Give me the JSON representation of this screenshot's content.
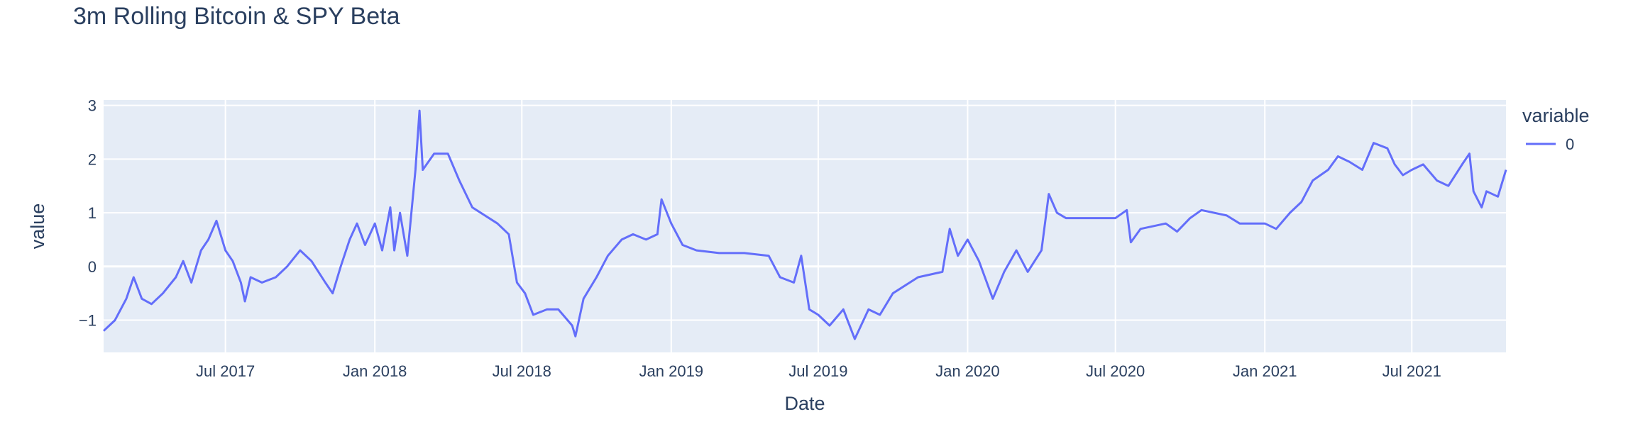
{
  "chart_data": {
    "type": "line",
    "title": "3m Rolling Bitcoin & SPY Beta",
    "xlabel": "Date",
    "ylabel": "value",
    "x_range": [
      "2017-02-01",
      "2021-10-25"
    ],
    "ylim": [
      -1.6,
      3.1
    ],
    "x_ticks": [
      {
        "date": "2017-07-01",
        "label": "Jul 2017"
      },
      {
        "date": "2018-01-01",
        "label": "Jan 2018"
      },
      {
        "date": "2018-07-01",
        "label": "Jul 2018"
      },
      {
        "date": "2019-01-01",
        "label": "Jan 2019"
      },
      {
        "date": "2019-07-01",
        "label": "Jul 2019"
      },
      {
        "date": "2020-01-01",
        "label": "Jan 2020"
      },
      {
        "date": "2020-07-01",
        "label": "Jul 2020"
      },
      {
        "date": "2021-01-01",
        "label": "Jan 2021"
      },
      {
        "date": "2021-07-01",
        "label": "Jul 2021"
      }
    ],
    "y_ticks": [
      -1,
      0,
      1,
      2,
      3
    ],
    "grid": true,
    "legend": {
      "title": "variable",
      "placement": "top-right"
    },
    "series": [
      {
        "name": "0",
        "color": "#636efa",
        "points": [
          [
            "2017-02-01",
            -1.2
          ],
          [
            "2017-02-15",
            -1.0
          ],
          [
            "2017-03-01",
            -0.6
          ],
          [
            "2017-03-10",
            -0.2
          ],
          [
            "2017-03-20",
            -0.6
          ],
          [
            "2017-04-01",
            -0.7
          ],
          [
            "2017-04-15",
            -0.5
          ],
          [
            "2017-05-01",
            -0.2
          ],
          [
            "2017-05-10",
            0.1
          ],
          [
            "2017-05-20",
            -0.3
          ],
          [
            "2017-06-01",
            0.3
          ],
          [
            "2017-06-10",
            0.5
          ],
          [
            "2017-06-20",
            0.85
          ],
          [
            "2017-07-01",
            0.3
          ],
          [
            "2017-07-10",
            0.1
          ],
          [
            "2017-07-20",
            -0.3
          ],
          [
            "2017-07-25",
            -0.65
          ],
          [
            "2017-08-01",
            -0.2
          ],
          [
            "2017-08-15",
            -0.3
          ],
          [
            "2017-09-01",
            -0.2
          ],
          [
            "2017-09-15",
            0.0
          ],
          [
            "2017-10-01",
            0.3
          ],
          [
            "2017-10-15",
            0.1
          ],
          [
            "2017-11-01",
            -0.3
          ],
          [
            "2017-11-10",
            -0.5
          ],
          [
            "2017-11-20",
            0.0
          ],
          [
            "2017-12-01",
            0.5
          ],
          [
            "2017-12-10",
            0.8
          ],
          [
            "2017-12-20",
            0.4
          ],
          [
            "2018-01-01",
            0.8
          ],
          [
            "2018-01-10",
            0.3
          ],
          [
            "2018-01-20",
            1.1
          ],
          [
            "2018-01-25",
            0.3
          ],
          [
            "2018-02-01",
            1.0
          ],
          [
            "2018-02-10",
            0.2
          ],
          [
            "2018-02-20",
            1.8
          ],
          [
            "2018-02-25",
            2.9
          ],
          [
            "2018-03-01",
            1.8
          ],
          [
            "2018-03-15",
            2.1
          ],
          [
            "2018-04-01",
            2.1
          ],
          [
            "2018-04-15",
            1.6
          ],
          [
            "2018-05-01",
            1.1
          ],
          [
            "2018-06-01",
            0.8
          ],
          [
            "2018-06-15",
            0.6
          ],
          [
            "2018-06-25",
            -0.3
          ],
          [
            "2018-07-05",
            -0.5
          ],
          [
            "2018-07-15",
            -0.9
          ],
          [
            "2018-08-01",
            -0.8
          ],
          [
            "2018-08-15",
            -0.8
          ],
          [
            "2018-09-01",
            -1.1
          ],
          [
            "2018-09-05",
            -1.3
          ],
          [
            "2018-09-15",
            -0.6
          ],
          [
            "2018-10-01",
            -0.2
          ],
          [
            "2018-10-15",
            0.2
          ],
          [
            "2018-11-01",
            0.5
          ],
          [
            "2018-11-15",
            0.6
          ],
          [
            "2018-12-01",
            0.5
          ],
          [
            "2018-12-15",
            0.6
          ],
          [
            "2018-12-20",
            1.25
          ],
          [
            "2019-01-01",
            0.8
          ],
          [
            "2019-01-15",
            0.4
          ],
          [
            "2019-02-01",
            0.3
          ],
          [
            "2019-03-01",
            0.25
          ],
          [
            "2019-04-01",
            0.25
          ],
          [
            "2019-05-01",
            0.2
          ],
          [
            "2019-05-15",
            -0.2
          ],
          [
            "2019-06-01",
            -0.3
          ],
          [
            "2019-06-10",
            0.2
          ],
          [
            "2019-06-20",
            -0.8
          ],
          [
            "2019-07-01",
            -0.9
          ],
          [
            "2019-07-15",
            -1.1
          ],
          [
            "2019-08-01",
            -0.8
          ],
          [
            "2019-08-15",
            -1.35
          ],
          [
            "2019-09-01",
            -0.8
          ],
          [
            "2019-09-15",
            -0.9
          ],
          [
            "2019-10-01",
            -0.5
          ],
          [
            "2019-11-01",
            -0.2
          ],
          [
            "2019-12-01",
            -0.1
          ],
          [
            "2019-12-10",
            0.7
          ],
          [
            "2019-12-20",
            0.2
          ],
          [
            "2020-01-01",
            0.5
          ],
          [
            "2020-01-15",
            0.1
          ],
          [
            "2020-02-01",
            -0.6
          ],
          [
            "2020-02-15",
            -0.1
          ],
          [
            "2020-03-01",
            0.3
          ],
          [
            "2020-03-15",
            -0.1
          ],
          [
            "2020-04-01",
            0.3
          ],
          [
            "2020-04-10",
            1.35
          ],
          [
            "2020-04-20",
            1.0
          ],
          [
            "2020-05-01",
            0.9
          ],
          [
            "2020-06-01",
            0.9
          ],
          [
            "2020-07-01",
            0.9
          ],
          [
            "2020-07-15",
            1.05
          ],
          [
            "2020-07-20",
            0.45
          ],
          [
            "2020-08-01",
            0.7
          ],
          [
            "2020-09-01",
            0.8
          ],
          [
            "2020-09-15",
            0.65
          ],
          [
            "2020-10-01",
            0.9
          ],
          [
            "2020-10-15",
            1.05
          ],
          [
            "2020-11-15",
            0.95
          ],
          [
            "2020-12-01",
            0.8
          ],
          [
            "2021-01-01",
            0.8
          ],
          [
            "2021-01-15",
            0.7
          ],
          [
            "2021-02-01",
            1.0
          ],
          [
            "2021-02-15",
            1.2
          ],
          [
            "2021-03-01",
            1.6
          ],
          [
            "2021-03-20",
            1.8
          ],
          [
            "2021-04-01",
            2.05
          ],
          [
            "2021-04-15",
            1.95
          ],
          [
            "2021-05-01",
            1.8
          ],
          [
            "2021-05-15",
            2.3
          ],
          [
            "2021-06-01",
            2.2
          ],
          [
            "2021-06-10",
            1.9
          ],
          [
            "2021-06-20",
            1.7
          ],
          [
            "2021-07-01",
            1.8
          ],
          [
            "2021-07-15",
            1.9
          ],
          [
            "2021-08-01",
            1.6
          ],
          [
            "2021-08-15",
            1.5
          ],
          [
            "2021-09-01",
            1.9
          ],
          [
            "2021-09-10",
            2.1
          ],
          [
            "2021-09-15",
            1.4
          ],
          [
            "2021-09-25",
            1.1
          ],
          [
            "2021-10-01",
            1.4
          ],
          [
            "2021-10-15",
            1.3
          ],
          [
            "2021-10-25",
            1.8
          ]
        ]
      }
    ]
  }
}
